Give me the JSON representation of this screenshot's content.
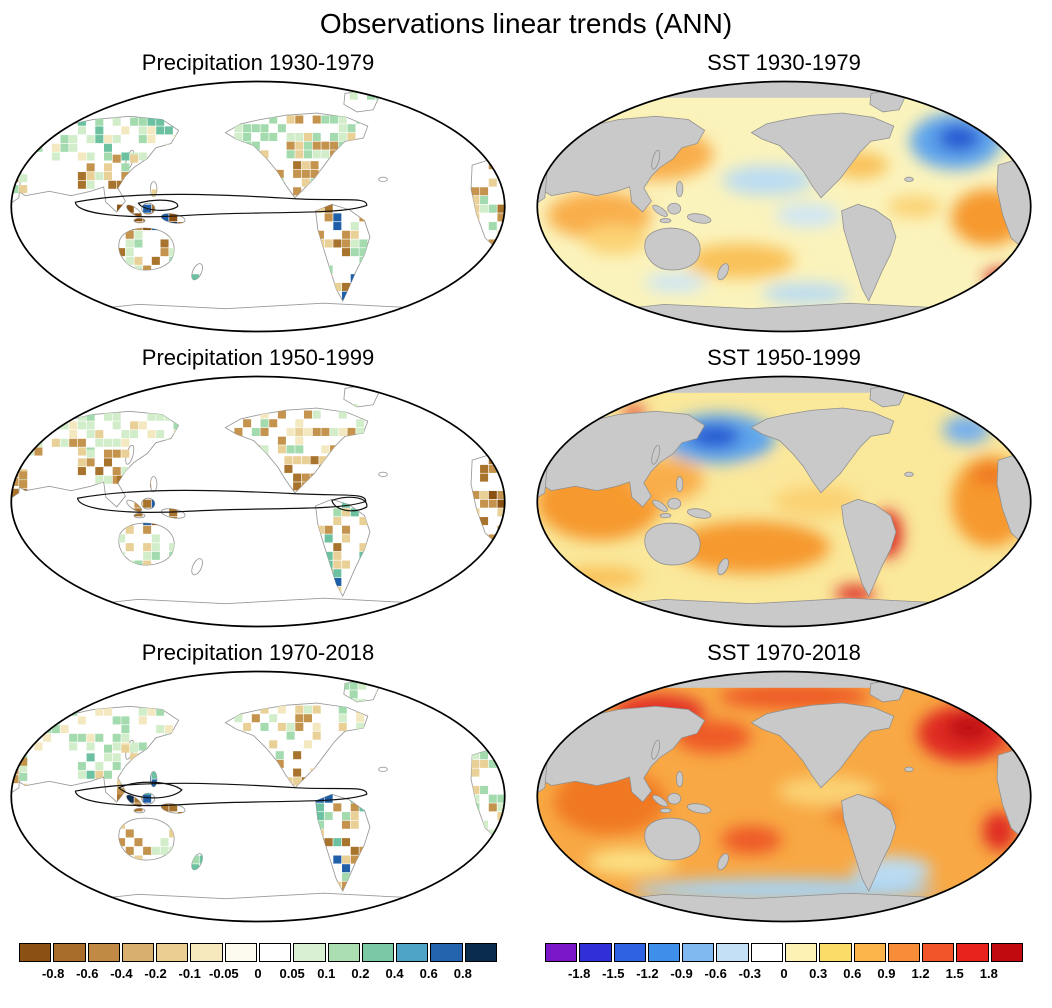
{
  "title": "Observations linear trends (ANN)",
  "panels": [
    {
      "id": "precip-1930-1979",
      "title": "Precipitation 1930-1979",
      "variable": "precipitation",
      "period": "1930-1979"
    },
    {
      "id": "sst-1930-1979",
      "title": "SST 1930-1979",
      "variable": "sst",
      "period": "1930-1979"
    },
    {
      "id": "precip-1950-1999",
      "title": "Precipitation 1950-1999",
      "variable": "precipitation",
      "period": "1950-1999"
    },
    {
      "id": "sst-1950-1999",
      "title": "SST 1950-1999",
      "variable": "sst",
      "period": "1950-1999"
    },
    {
      "id": "precip-1970-2018",
      "title": "Precipitation 1970-2018",
      "variable": "precipitation",
      "period": "1970-2018"
    },
    {
      "id": "sst-1970-2018",
      "title": "SST 1970-2018",
      "variable": "sst",
      "period": "1970-2018"
    }
  ],
  "chart_data": {
    "type": "heatmap",
    "title": "Observations linear trends (ANN)",
    "projection": "Robinson world maps, Pacific-centered",
    "layout": "3 rows x 2 columns; left column gridded precipitation trend maps, right column smooth SST trend maps; one colorbar under each column",
    "panels": [
      {
        "title": "Precipitation 1930-1979",
        "variable": "Precipitation",
        "period": "1930-1979",
        "features": [
          "wetting (green) cells over much of northern Eurasia and northern North America",
          "drying (brown) cells over South/Southeast Asia, the Maritime Continent, Australia and Central America",
          "scattered strong wet (dark blue) cells over the Maritime Continent",
          "black contour loop encircling the tropical Indo-Pacific band"
        ]
      },
      {
        "title": "SST 1930-1979",
        "variable": "SST",
        "period": "1930-1979",
        "features": [
          "strong cooling (dark blue) center in the subpolar North Atlantic",
          "warming (orange) in the northwest Pacific and Indian Ocean",
          "weak cool (light blue) patches in the central Pacific",
          "localized strong warming (red) in the far South Atlantic"
        ]
      },
      {
        "title": "Precipitation 1950-1999",
        "variable": "Precipitation",
        "period": "1950-1999",
        "features": [
          "widespread drying (brown) over the Maritime Continent, Australia and Africa",
          "mixed wet/dry cells over North America; wetting over southeastern South America",
          "black contour loop encircling the tropical Indo-Pacific band"
        ]
      },
      {
        "title": "SST 1950-1999",
        "variable": "SST",
        "period": "1950-1999",
        "features": [
          "cooling (blue) center in the central North Pacific",
          "weak cooling (light blue) in the subpolar North Atlantic",
          "widespread warming (orange) across the Indian Ocean, South Pacific and Atlantic",
          "strong warming (red) spots near the South American coasts and Southern Ocean"
        ]
      },
      {
        "title": "Precipitation 1970-2018",
        "variable": "Precipitation",
        "period": "1970-2018",
        "features": [
          "strong wetting (dark blue) cluster over the Maritime Continent",
          "wetting (green) over northern Eurasia and eastern Asia",
          "drying (brown) over subtropical South America and parts of Africa",
          "black contour loop encircling the tropical Indo-Pacific band"
        ]
      },
      {
        "title": "SST 1970-2018",
        "variable": "SST",
        "period": "1970-2018",
        "features": [
          "widespread strong warming (orange to red) over most ocean basins",
          "strongest warming (dark red) in the North Atlantic and northwest Pacific",
          "weak cooling (light blue) band in the Southern Ocean"
        ]
      }
    ],
    "colorbars": [
      {
        "name": "precipitation",
        "position": "bottom-left",
        "tick_labels": [
          "-0.8",
          "-0.6",
          "-0.4",
          "-0.2",
          "-0.1",
          "-0.05",
          "0",
          "0.05",
          "0.1",
          "0.2",
          "0.4",
          "0.6",
          "0.8"
        ],
        "colors": [
          "#8a5113",
          "#a86d2a",
          "#c08a44",
          "#d8af6e",
          "#ebcf92",
          "#f7e9be",
          "#fdfaef",
          "#ffffff",
          "#d9f0d2",
          "#abdfb2",
          "#7bc8a4",
          "#4da4c4",
          "#2463ae",
          "#0a2c4e"
        ]
      },
      {
        "name": "sst",
        "position": "bottom-right",
        "tick_labels": [
          "-1.8",
          "-1.5",
          "-1.2",
          "-0.9",
          "-0.6",
          "-0.3",
          "0",
          "0.3",
          "0.6",
          "0.9",
          "1.2",
          "1.5",
          "1.8"
        ],
        "colors": [
          "#7c16c9",
          "#3030d8",
          "#2e62e2",
          "#3f8fea",
          "#7fb9f0",
          "#c3e0f7",
          "#ffffff",
          "#fdf2b3",
          "#fcdc68",
          "#fbb54b",
          "#f98c38",
          "#f2552a",
          "#e8221c",
          "#c00a10"
        ]
      }
    ]
  }
}
